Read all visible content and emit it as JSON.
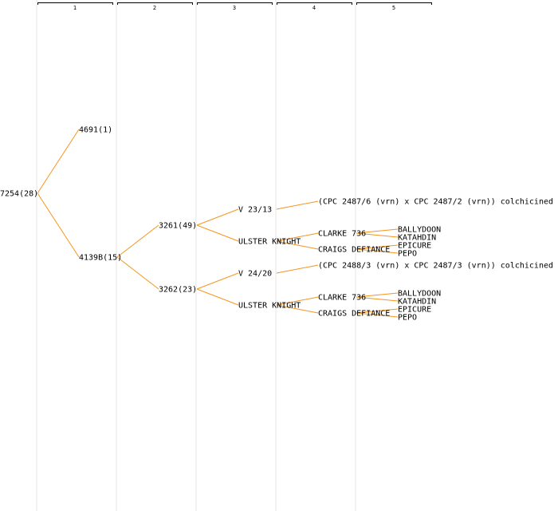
{
  "generations": [
    "1",
    "2",
    "3",
    "4",
    "5"
  ],
  "colors": {
    "edge": "#f7941d",
    "column_band": "#f2f2f2",
    "header_line": "#000000",
    "text": "#000000"
  },
  "tree": {
    "label": "7254(28)",
    "children": [
      {
        "label": "4691(1)",
        "children": []
      },
      {
        "label": "4139B(15)",
        "children": [
          {
            "label": "3261(49)",
            "children": [
              {
                "label": "V 23/13",
                "children": [
                  {
                    "label": "(CPC 2487/6 (vrn) x CPC 2487/2 (vrn)) colchicined",
                    "children": []
                  }
                ]
              },
              {
                "label": "ULSTER KNIGHT",
                "children": [
                  {
                    "label": "CLARKE 736",
                    "children": [
                      {
                        "label": "BALLYDOON",
                        "children": []
                      },
                      {
                        "label": "KATAHDIN",
                        "children": []
                      }
                    ]
                  },
                  {
                    "label": "CRAIGS DEFIANCE",
                    "children": [
                      {
                        "label": "EPICURE",
                        "children": []
                      },
                      {
                        "label": "PEPO",
                        "children": []
                      }
                    ]
                  }
                ]
              }
            ]
          },
          {
            "label": "3262(23)",
            "children": [
              {
                "label": "V 24/20",
                "children": [
                  {
                    "label": "(CPC 2488/3 (vrn) x CPC 2487/3 (vrn)) colchicined",
                    "children": []
                  }
                ]
              },
              {
                "label": "ULSTER KNIGHT",
                "children": [
                  {
                    "label": "CLARKE 736",
                    "children": [
                      {
                        "label": "BALLYDOON",
                        "children": []
                      },
                      {
                        "label": "KATAHDIN",
                        "children": []
                      }
                    ]
                  },
                  {
                    "label": "CRAIGS DEFIANCE",
                    "children": [
                      {
                        "label": "EPICURE",
                        "children": []
                      },
                      {
                        "label": "PEPO",
                        "children": []
                      }
                    ]
                  }
                ]
              }
            ]
          }
        ]
      }
    ]
  }
}
